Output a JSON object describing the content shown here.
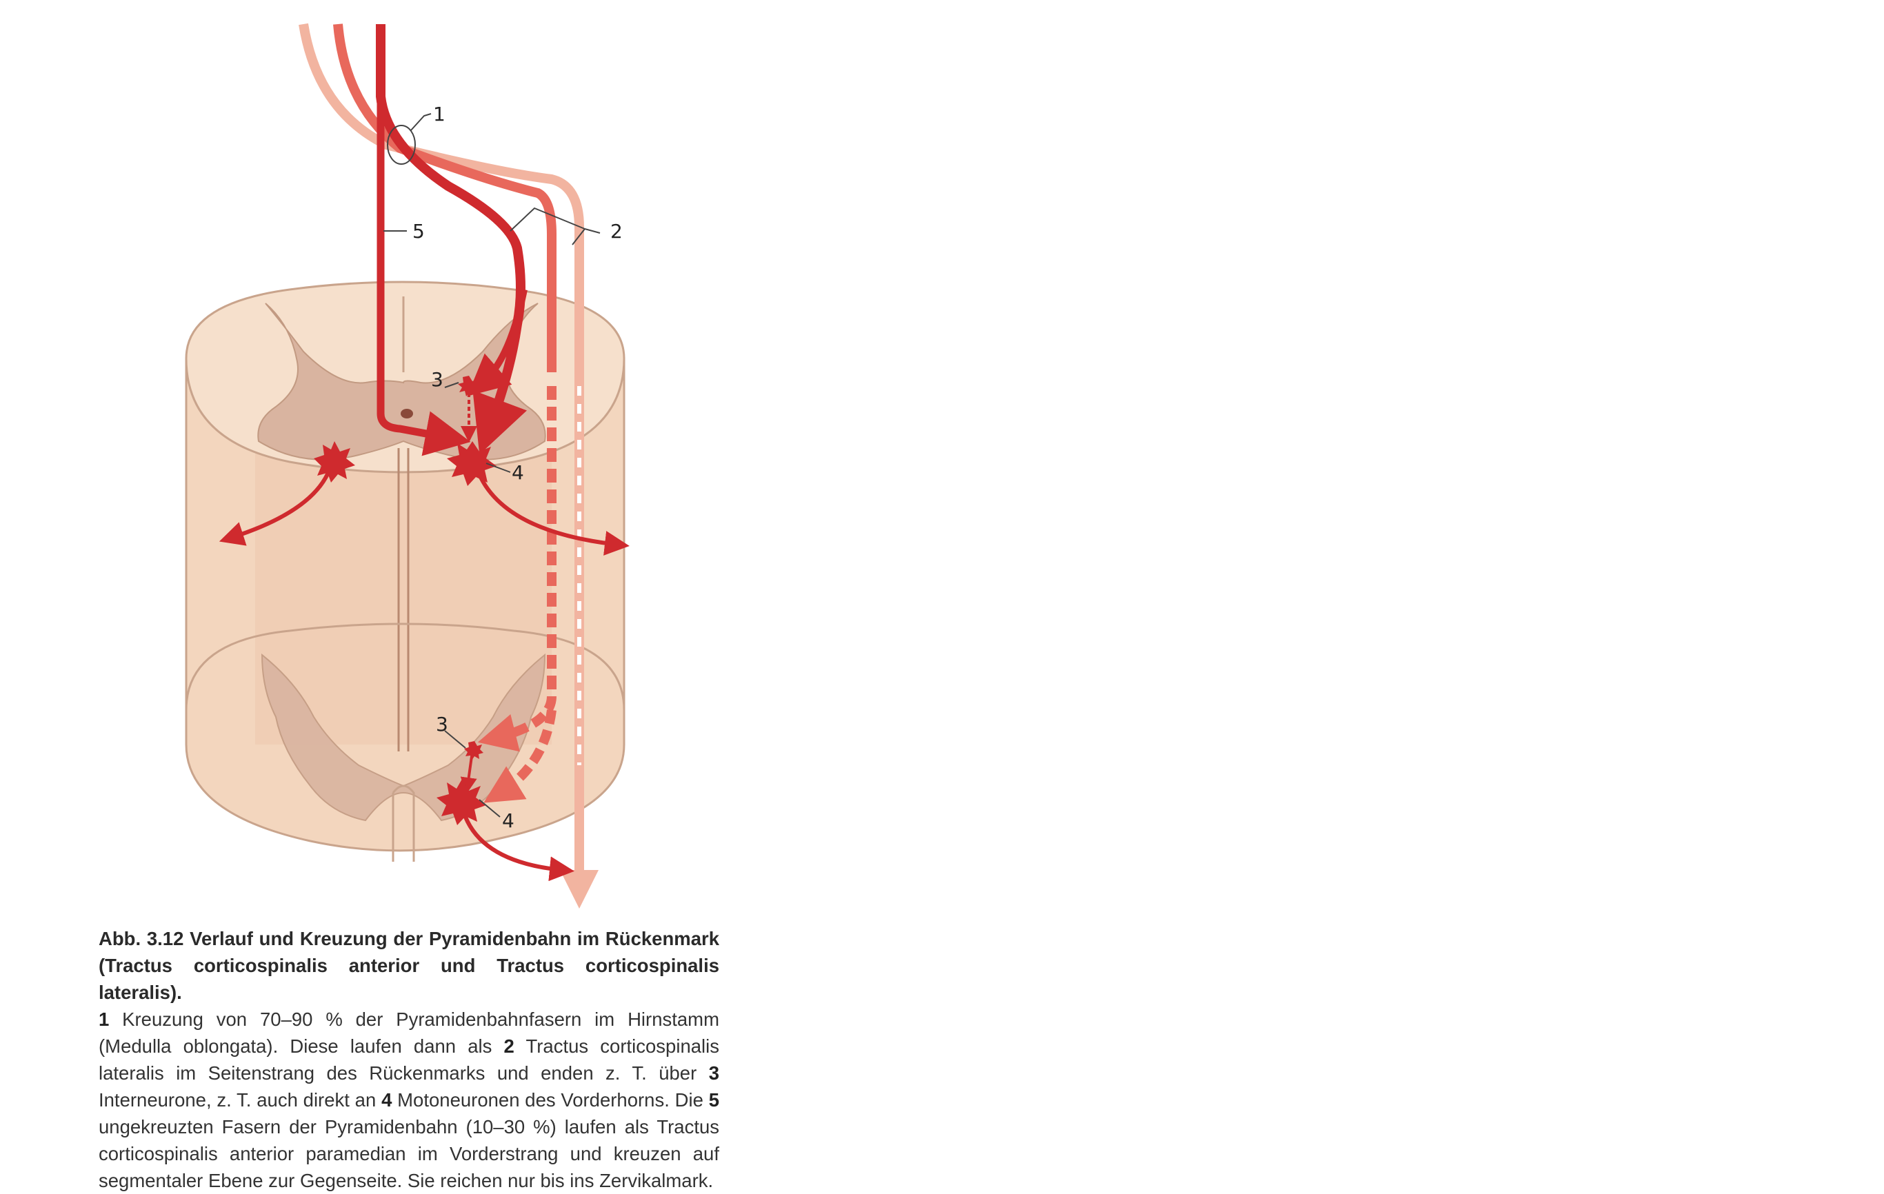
{
  "figure": {
    "labels": {
      "l1": "1",
      "l2": "2",
      "l3_upper": "3",
      "l4_upper": "4",
      "l5": "5",
      "l3_lower": "3",
      "l4_lower": "4"
    },
    "colors": {
      "tract_dark": "#cf2a2e",
      "tract_mid": "#e8685c",
      "tract_light": "#f2b4a0",
      "cord_white": "#f6e0cc",
      "cord_side": "#efd1b8",
      "grey_matter": "#d9b4a0",
      "outline": "#c9a48c"
    }
  },
  "caption": {
    "heading": "Abb. 3.12  Verlauf und Kreuzung der Pyramidenbahn im Rückenmark (Tractus corticospinalis anterior und Tractus corticospinalis lateralis).",
    "n1": "1",
    "t1": " Kreuzung von 70–90 % der Pyramidenbahnfasern im Hirnstamm (Medulla oblongata). Diese laufen dann als ",
    "n2": "2",
    "t2": " Tractus corticospinalis lateralis im Seitenstrang des Rückenmarks und enden z. T. über ",
    "n3": "3",
    "t3": " Interneurone, z. T. auch direkt an ",
    "n4": "4",
    "t4": " Motoneuronen des Vorderhorns. Die ",
    "n5": "5",
    "t5": " ungekreuzten Fasern der Pyramidenbahn (10–30 %) laufen als Tractus corticospinalis anterior paramedian im Vorderstrang und kreuzen auf segmentaler Ebene zur Gegenseite. Sie reichen nur bis ins Zervikalmark."
  }
}
